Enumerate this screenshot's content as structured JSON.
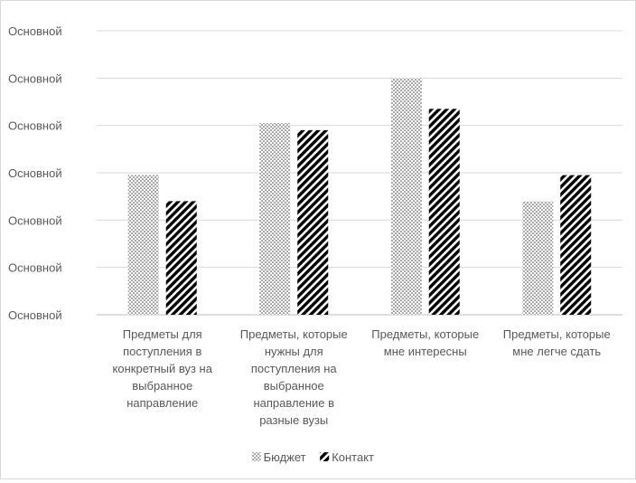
{
  "chart_data": {
    "type": "bar",
    "y_tick_labels": [
      "Основной",
      "Основной",
      "Основной",
      "Основной",
      "Основной",
      "Основной",
      "Основной"
    ],
    "ylim": [
      0,
      6
    ],
    "grid": true,
    "legend_position": "bottom",
    "categories": [
      [
        "Предметы для",
        "поступления в",
        "конкретный вуз на",
        "выбранное",
        "направление"
      ],
      [
        "Предметы, которые",
        "нужны для",
        "поступления на",
        "выбранное",
        "направление в",
        "разные вузы"
      ],
      [
        "Предметы, которые",
        "мне интересны"
      ],
      [
        "Предметы, которые",
        "мне легче сдать"
      ]
    ],
    "series": [
      {
        "name": "Бюджет",
        "values": [
          2.95,
          4.05,
          5.0,
          2.4
        ],
        "pattern": "dots",
        "color": "#404040"
      },
      {
        "name": "Контакт",
        "values": [
          2.4,
          3.9,
          4.35,
          2.95
        ],
        "pattern": "diagonal-stripes",
        "color": "#000000"
      }
    ],
    "gridline_color": "#d9d9d9",
    "axis_color": "#bfbfbf"
  }
}
